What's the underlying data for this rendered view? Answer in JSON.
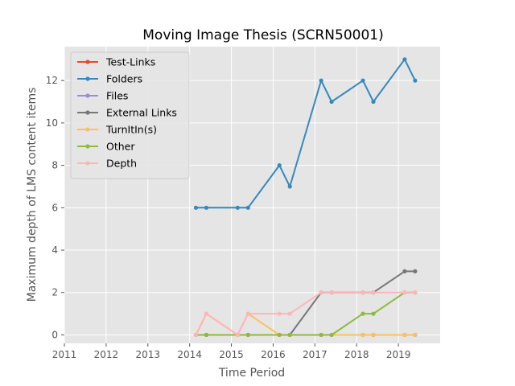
{
  "chart_data": {
    "type": "line",
    "title": "Moving Image Thesis (SCRN50001)",
    "xlabel": "Time Period",
    "ylabel": "Maximum depth of LMS content items",
    "xlim": [
      2011,
      2020
    ],
    "ylim": [
      -0.4,
      13.6
    ],
    "x_ticks": [
      2011,
      2012,
      2013,
      2014,
      2015,
      2016,
      2017,
      2018,
      2019
    ],
    "y_ticks": [
      0,
      2,
      4,
      6,
      8,
      10,
      12
    ],
    "grid": true,
    "legend_position": "upper-left",
    "x": [
      2014.15,
      2014.4,
      2015.15,
      2015.4,
      2016.15,
      2016.4,
      2017.15,
      2017.4,
      2018.15,
      2018.4,
      2019.15,
      2019.4
    ],
    "series": [
      {
        "name": "Test-Links",
        "color": "#e24a33",
        "values": [
          0,
          0,
          0,
          0,
          0,
          0,
          0,
          0,
          0,
          0,
          0,
          0
        ]
      },
      {
        "name": "Folders",
        "color": "#348abd",
        "values": [
          6,
          6,
          6,
          6,
          8,
          7,
          12,
          11,
          12,
          11,
          13,
          12
        ]
      },
      {
        "name": "Files",
        "color": "#988ed5",
        "values": [
          0,
          0,
          0,
          0,
          0,
          0,
          0,
          0,
          0,
          0,
          0,
          0
        ]
      },
      {
        "name": "External Links",
        "color": "#777777",
        "values": [
          0,
          0,
          0,
          0,
          0,
          0,
          2,
          2,
          2,
          2,
          3,
          3
        ]
      },
      {
        "name": "TurnItIn(s)",
        "color": "#fbc15e",
        "values": [
          0,
          1,
          0,
          1,
          0,
          0,
          0,
          0,
          0,
          0,
          0,
          0
        ]
      },
      {
        "name": "Other",
        "color": "#8eba42",
        "values": [
          0,
          0,
          0,
          0,
          0,
          0,
          0,
          0,
          1,
          1,
          2,
          2
        ]
      },
      {
        "name": "Depth",
        "color": "#ffb5b8",
        "values": [
          0,
          1,
          0,
          1,
          1,
          1,
          2,
          2,
          2,
          2,
          2,
          2
        ]
      }
    ]
  }
}
